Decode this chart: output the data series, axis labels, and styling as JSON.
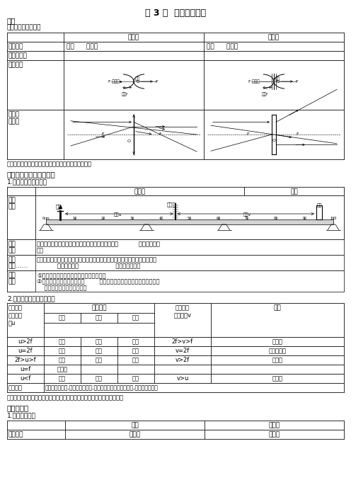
{
  "title": "第 3 讲  透镜及其应用",
  "section1_title": "透镜",
  "section1_sub": "认识凸透镜和凹透镜",
  "tip1": "【提示】凸透镜表面越凸，焦距越短，折光能力越强。",
  "section2_title": "凸透镜成像规律及其应用",
  "section2_sub": "1.探究凸透镜成像规律",
  "section2b_sub": "2.凸透镜成像规律及其应用",
  "table2_rows": [
    [
      "u>2f",
      "倒立",
      "缩小",
      "实像",
      "2f>v>f",
      "照相机"
    ],
    [
      "u=2f",
      "倒立",
      "等大",
      "实像",
      "v=2f",
      "间接测焦距"
    ],
    [
      "2f>u>f",
      "倒立",
      "放大",
      "实像",
      "v>2f",
      "投影仪"
    ],
    [
      "u=f",
      "不成像",
      "",
      "",
      "",
      ""
    ],
    [
      "u<f",
      "正立",
      "放大",
      "虚像",
      "v>u",
      "放大镜"
    ]
  ],
  "table2_rule": "巧记规律",
  "table2_rule2": "一倍焦距分虚实,二倍焦距分大小;成实像时，物近像远像变大,物远近像像变小",
  "tip2": "【提示】当没有给出凸透镜焦距时，可利用太阳光粗略测量凸透镜的焦距。",
  "section3_title": "眼睛和眼镜",
  "section3_sub": "1.眼睛与照相机",
  "bg_color": "#ffffff"
}
